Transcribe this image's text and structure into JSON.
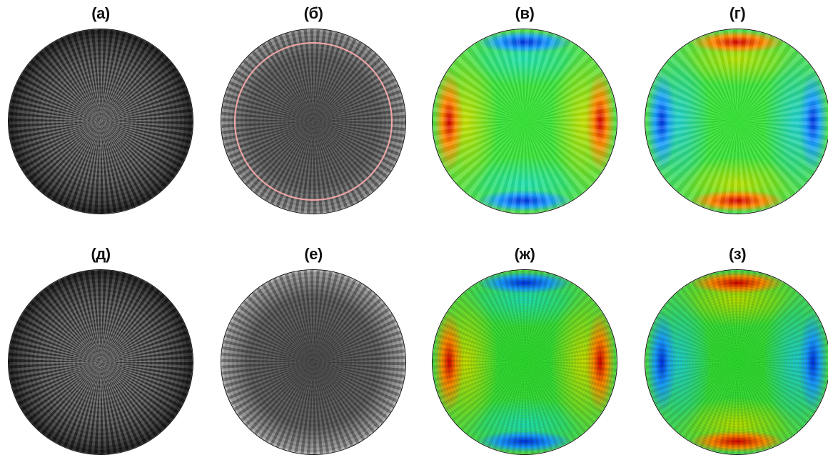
{
  "panels": [
    {
      "label": "(а)",
      "kind": "gray-speckle"
    },
    {
      "label": "(б)",
      "kind": "gray-ring-pink"
    },
    {
      "label": "(в)",
      "kind": "color-horizontal-red"
    },
    {
      "label": "(г)",
      "kind": "color-vertical-red"
    },
    {
      "label": "(д)",
      "kind": "gray-speckle"
    },
    {
      "label": "(е)",
      "kind": "gray-ring-white"
    },
    {
      "label": "(ж)",
      "kind": "color-horizontal-red-noisy"
    },
    {
      "label": "(з)",
      "kind": "color-vertical-red-noisy"
    }
  ],
  "colors": {
    "red": "#d40000",
    "blue": "#0030e0",
    "green": "#2ee22e",
    "pink_ring": "#f4a6a6",
    "outline": "#111111"
  }
}
